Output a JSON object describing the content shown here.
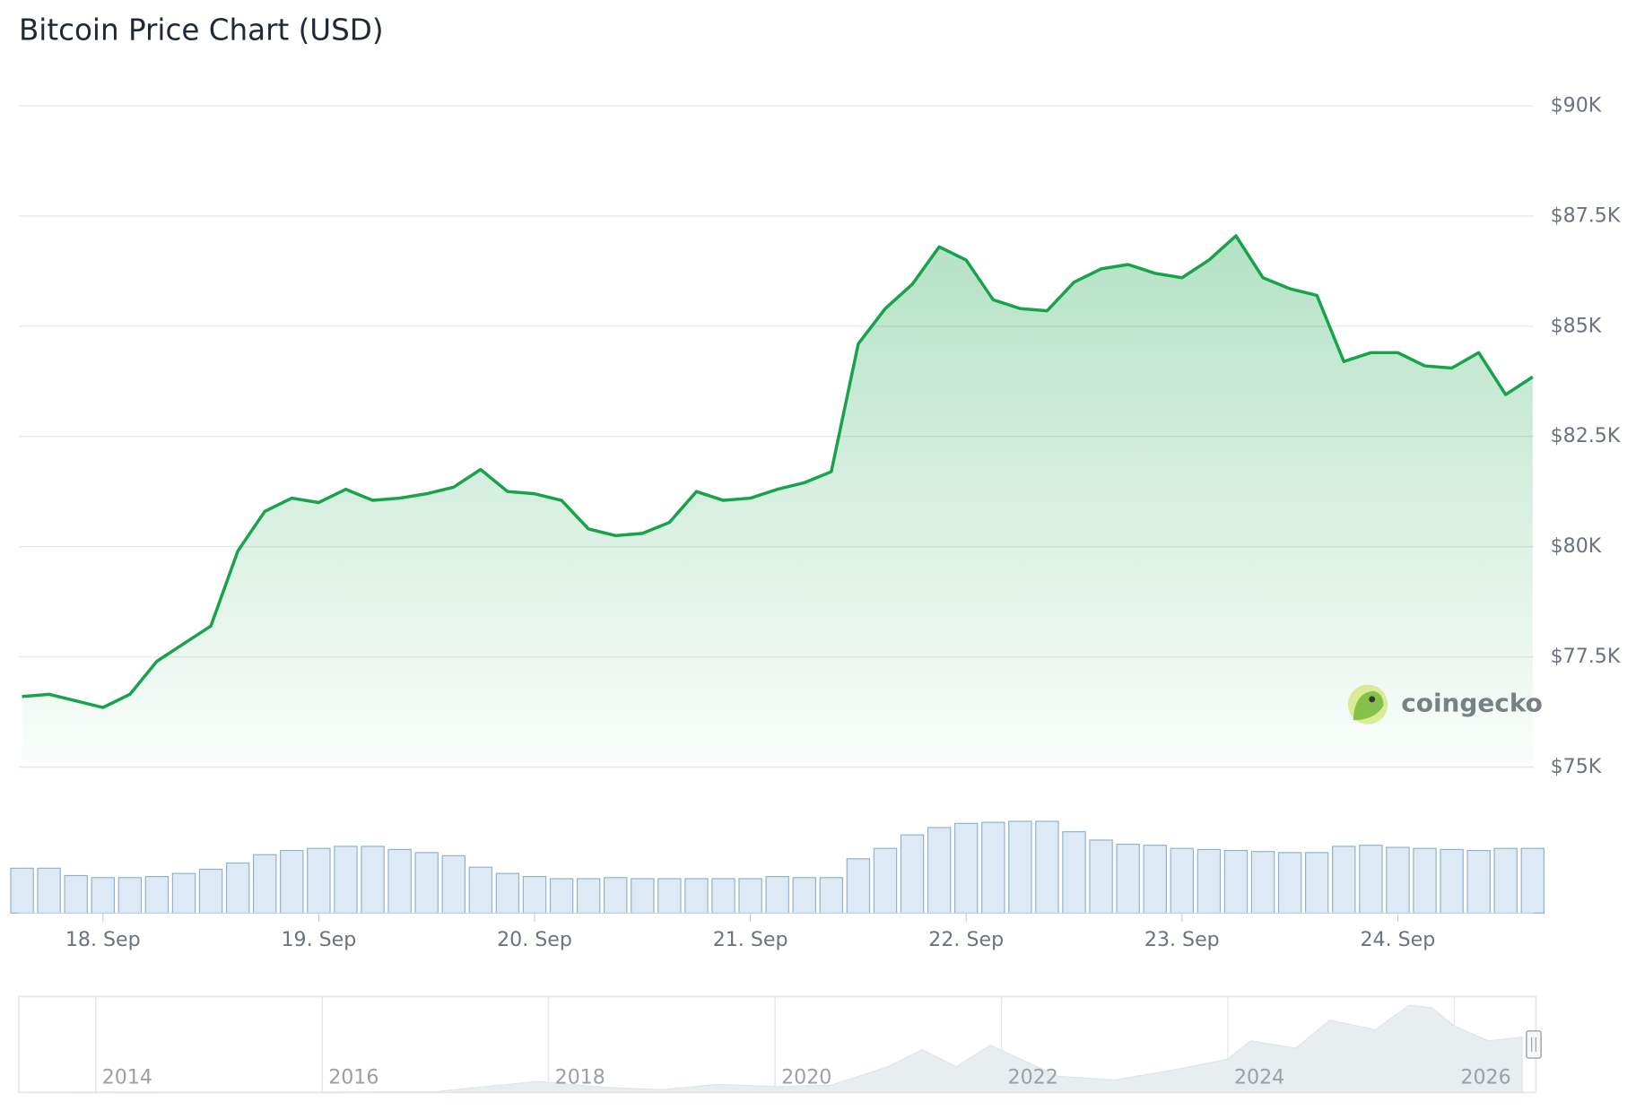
{
  "chart_data": {
    "type": "line",
    "title": "Bitcoin Price Chart (USD)",
    "watermark": "coingecko",
    "color": "#16a34a",
    "grid": true,
    "x": [
      17.625,
      17.75,
      17.875,
      18,
      18.125,
      18.25,
      18.375,
      18.5,
      18.625,
      18.75,
      18.875,
      19,
      19.125,
      19.25,
      19.375,
      19.5,
      19.625,
      19.75,
      19.875,
      20,
      20.125,
      20.25,
      20.375,
      20.5,
      20.625,
      20.75,
      20.875,
      21,
      21.125,
      21.25,
      21.375,
      21.5,
      21.625,
      21.75,
      21.875,
      22,
      22.125,
      22.25,
      22.375,
      22.5,
      22.625,
      22.75,
      22.875,
      23,
      23.125,
      23.25,
      23.375,
      23.5,
      23.625,
      23.75,
      23.875,
      24,
      24.125,
      24.25,
      24.375,
      24.5,
      24.625
    ],
    "values": [
      76600,
      76650,
      76500,
      76350,
      76650,
      77400,
      77800,
      78200,
      79900,
      80800,
      81100,
      81000,
      81300,
      81050,
      81100,
      81200,
      81350,
      81750,
      81250,
      81200,
      81050,
      80400,
      80250,
      80300,
      80550,
      81250,
      81050,
      81100,
      81300,
      81450,
      81700,
      84600,
      85400,
      85950,
      86800,
      86500,
      85600,
      85400,
      85350,
      86000,
      86300,
      86400,
      86200,
      86100,
      86500,
      87050,
      86100,
      85850,
      85700,
      84200,
      84400,
      84400,
      84100,
      84050,
      84400,
      83450,
      83850
    ],
    "xlim": [
      17.61,
      24.63
    ],
    "xticks": [
      {
        "value": 18,
        "label": "18. Sep"
      },
      {
        "value": 19,
        "label": "19. Sep"
      },
      {
        "value": 20,
        "label": "20. Sep"
      },
      {
        "value": 21,
        "label": "21. Sep"
      },
      {
        "value": 22,
        "label": "22. Sep"
      },
      {
        "value": 23,
        "label": "23. Sep"
      },
      {
        "value": 24,
        "label": "24. Sep"
      }
    ],
    "ylim": [
      75000,
      90000
    ],
    "yticks": [
      {
        "value": 75000,
        "label": "$75K"
      },
      {
        "value": 77500,
        "label": "$77.5K"
      },
      {
        "value": 80000,
        "label": "$80K"
      },
      {
        "value": 82500,
        "label": "$82.5K"
      },
      {
        "value": 85000,
        "label": "$85K"
      },
      {
        "value": 87500,
        "label": "$87.5K"
      },
      {
        "value": 90000,
        "label": "$90K"
      }
    ],
    "volume": {
      "color": "#dde9f4",
      "values": [
        43,
        43,
        36,
        34,
        34,
        35,
        38,
        42,
        48,
        56,
        60,
        62,
        64,
        64,
        61,
        58,
        55,
        44,
        38,
        35,
        33,
        33,
        34,
        33,
        33,
        33,
        33,
        33,
        35,
        34,
        34,
        52,
        62,
        75,
        82,
        86,
        87,
        88,
        88,
        78,
        70,
        66,
        65,
        62,
        61,
        60,
        59,
        58,
        58,
        64,
        65,
        63,
        62,
        61,
        60,
        62,
        62
      ],
      "ylim": [
        0,
        100
      ]
    },
    "navigator": {
      "color": "#e8edf0",
      "x": [
        2013.4,
        2014,
        2015,
        2016,
        2017,
        2017.9,
        2018.5,
        2019,
        2019.5,
        2020,
        2020.5,
        2021,
        2021.3,
        2021.6,
        2021.9,
        2022.5,
        2023,
        2023.5,
        2024,
        2024.2,
        2024.6,
        2024.9,
        2025.3,
        2025.6,
        2025.8,
        2026,
        2026.3,
        2026.6
      ],
      "values": [
        100,
        600,
        300,
        400,
        1000,
        15000,
        7000,
        3800,
        11000,
        8000,
        10000,
        35000,
        58000,
        35000,
        64000,
        22000,
        17000,
        30000,
        45000,
        70000,
        60000,
        98000,
        85000,
        118000,
        115000,
        90000,
        70000,
        75000
      ],
      "xlim": [
        2013.32,
        2026.72
      ],
      "ylim": [
        0,
        130000
      ],
      "xticks": [
        2014,
        2016,
        2018,
        2020,
        2022,
        2024,
        2026
      ]
    }
  }
}
